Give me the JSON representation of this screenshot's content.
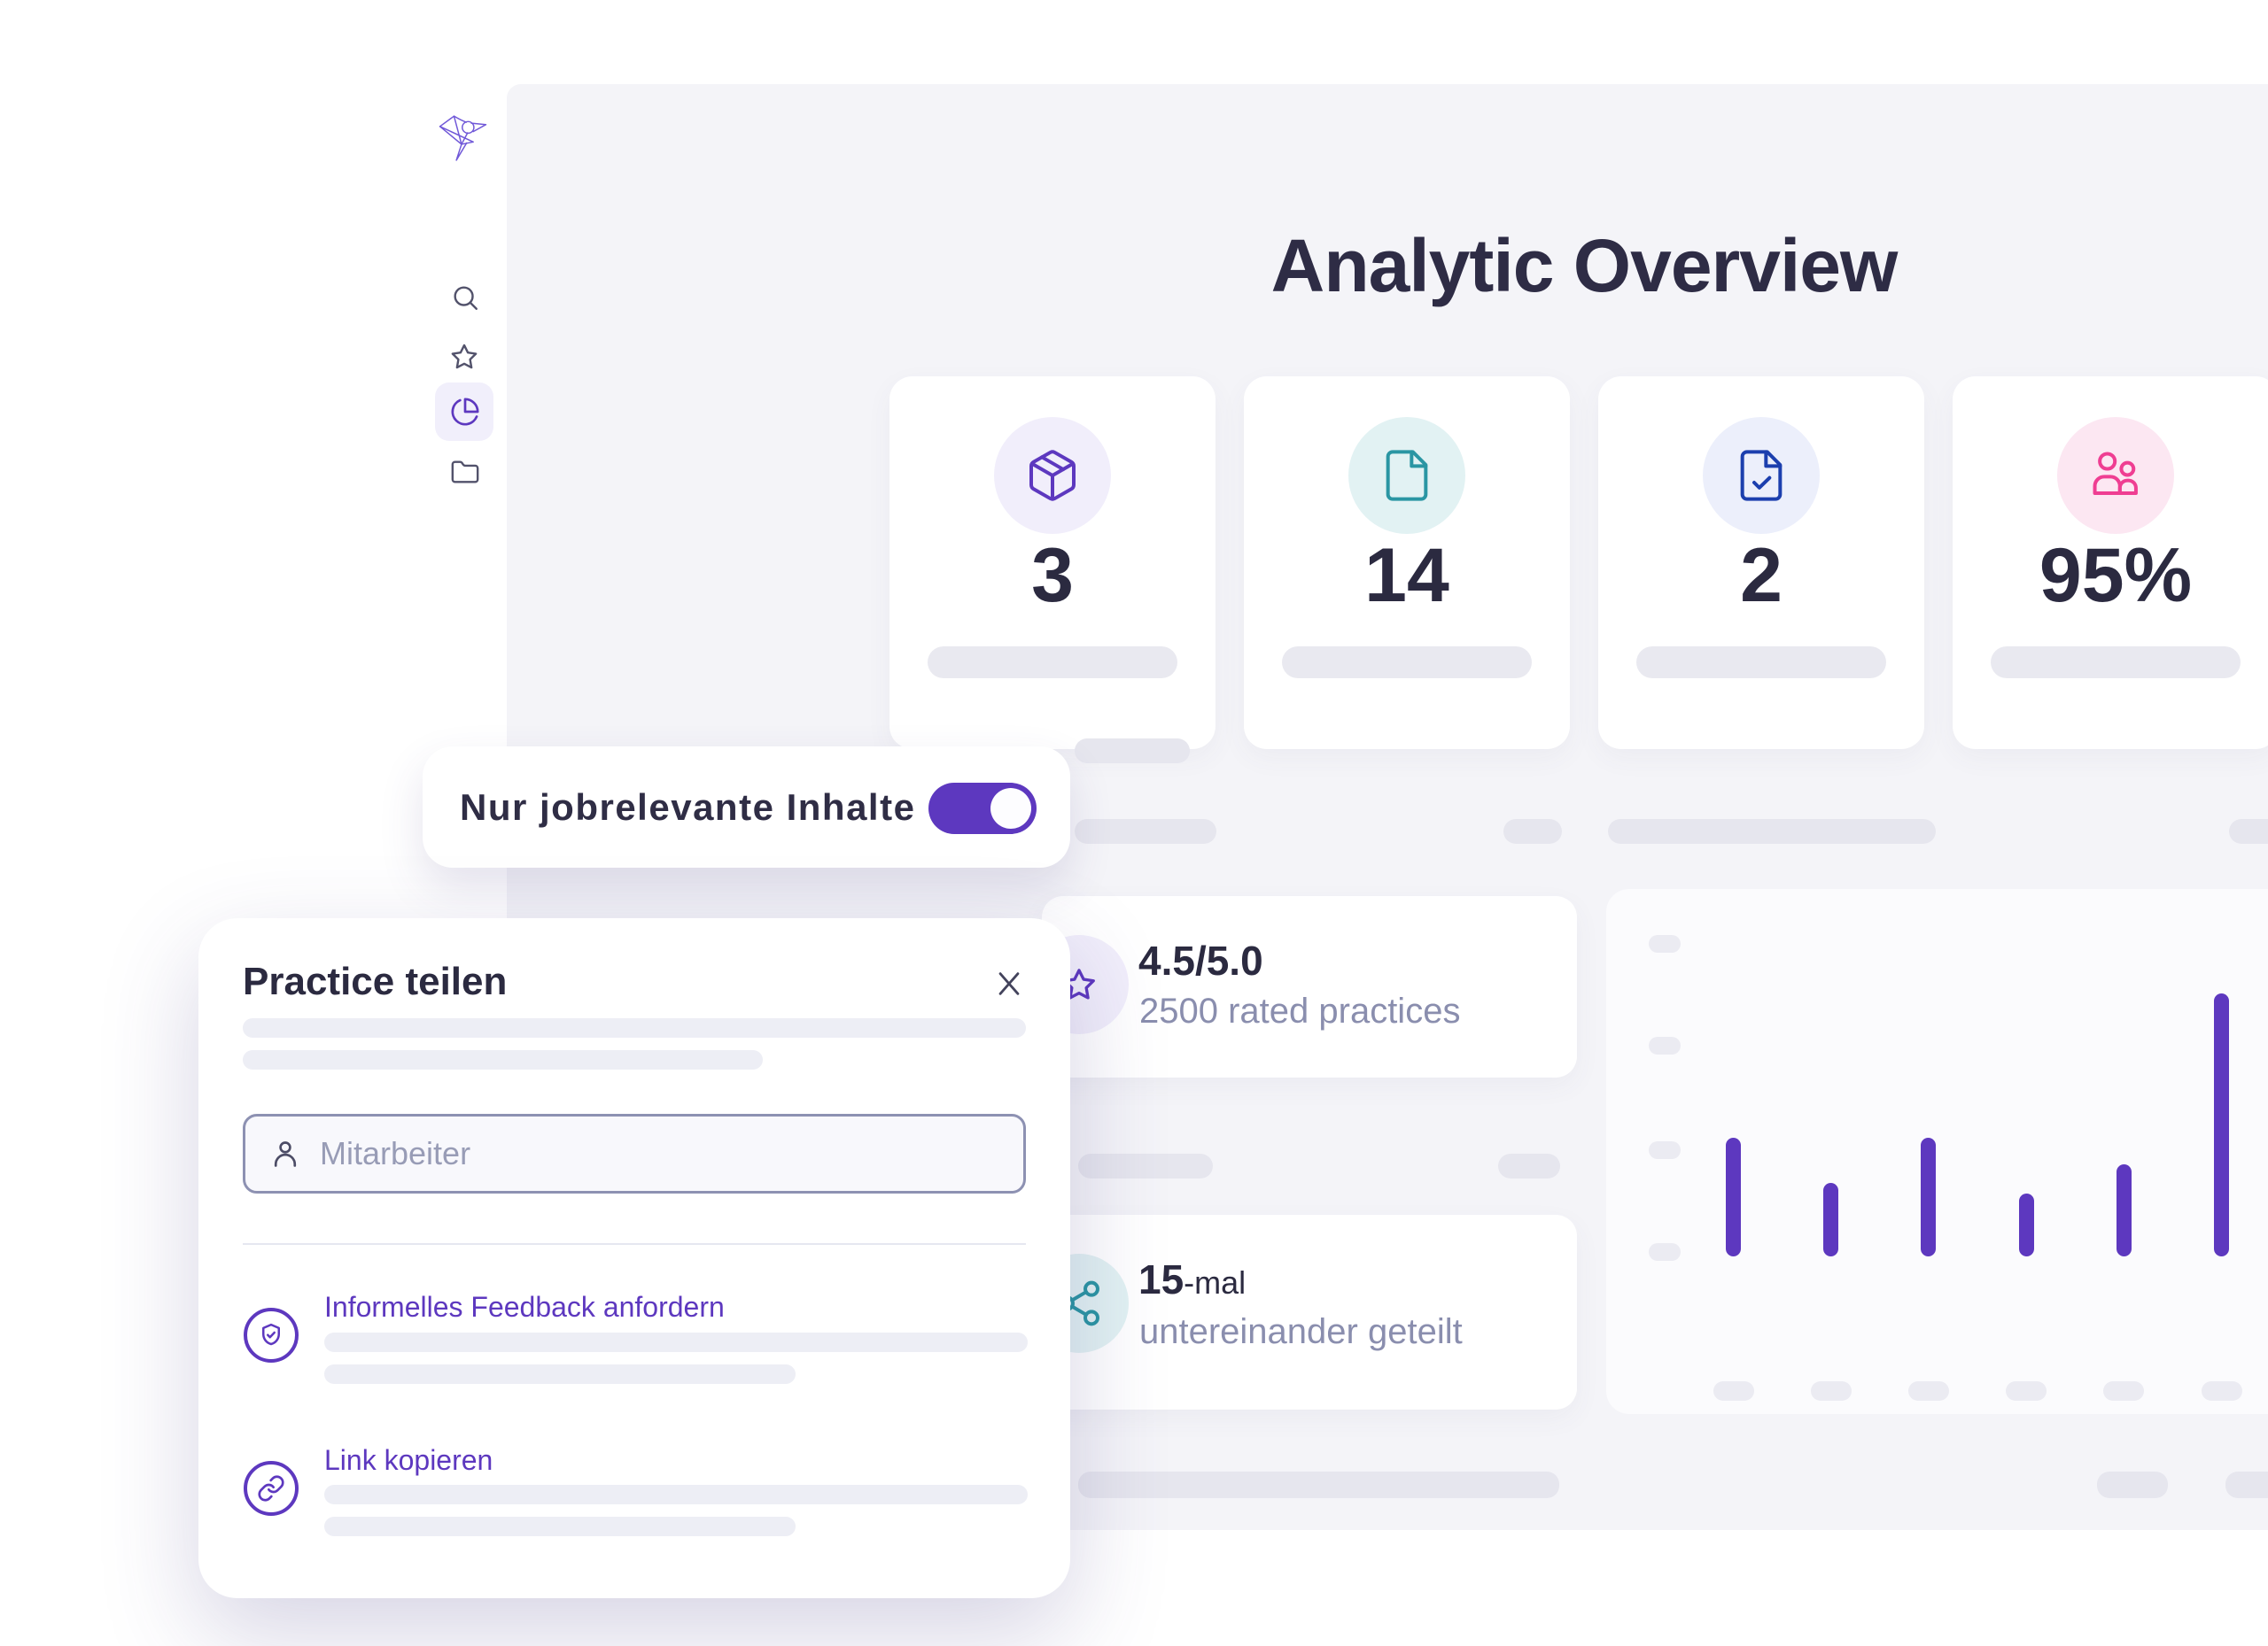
{
  "app": {
    "colors": {
      "accent": "#5d38bf",
      "teal": "#2a96a3",
      "blue": "#1c3fae",
      "pink": "#ef3e92",
      "accent_bg": "#f1eefb",
      "teal_bg": "#e2f2f3",
      "blue_bg": "#eceffb",
      "pink_bg": "#fce7f2",
      "dark_text": "#2b2a40",
      "muted_text": "#8a8eae"
    }
  },
  "sidebar": {
    "logo_icon": "hummingbird-logo",
    "items": [
      {
        "icon": "search-icon",
        "active": false
      },
      {
        "icon": "star-icon",
        "active": false
      },
      {
        "icon": "pie-chart-icon",
        "active": true
      },
      {
        "icon": "folder-icon",
        "active": false
      }
    ]
  },
  "header": {
    "title": "Analytic Overview"
  },
  "stat_cards": [
    {
      "icon": "package-icon",
      "value": "3",
      "icon_color": "#5d38bf",
      "icon_bg": "#f1eefb"
    },
    {
      "icon": "file-icon",
      "value": "14",
      "icon_color": "#2a96a3",
      "icon_bg": "#e2f2f3"
    },
    {
      "icon": "file-check-icon",
      "value": "2",
      "icon_color": "#1c3fae",
      "icon_bg": "#eceffb"
    },
    {
      "icon": "users-icon",
      "value": "95%",
      "icon_color": "#ef3e92",
      "icon_bg": "#fce7f2"
    }
  ],
  "filter_toggle": {
    "label": "Nur jobrelevante Inhalte",
    "state": "on"
  },
  "rating_card": {
    "icon": "star-icon",
    "value": "4.5/5.0",
    "description": "2500 rated practices"
  },
  "share_stats_card": {
    "icon": "share-icon",
    "value": "15",
    "value_suffix": "-mal",
    "description": "untereinander geteilt"
  },
  "share_modal": {
    "title": "Practice teilen",
    "close_icon": "close-icon",
    "input": {
      "icon": "person-icon",
      "placeholder": "Mitarbeiter",
      "value": ""
    },
    "actions": [
      {
        "icon": "shield-check-icon",
        "label": "Informelles Feedback anfordern"
      },
      {
        "icon": "link-icon",
        "label": "Link kopieren"
      }
    ]
  },
  "chart_data": {
    "type": "bar",
    "categories": [
      "",
      "",
      "",
      "",
      "",
      ""
    ],
    "values": [
      45,
      28,
      45,
      24,
      35,
      100
    ],
    "ylim": [
      0,
      100
    ],
    "title": "",
    "xlabel": "",
    "ylabel": "",
    "bar_color": "#5d38bf",
    "grid": false,
    "axis_tick_placeholders": {
      "y": 4,
      "x": 6
    }
  }
}
